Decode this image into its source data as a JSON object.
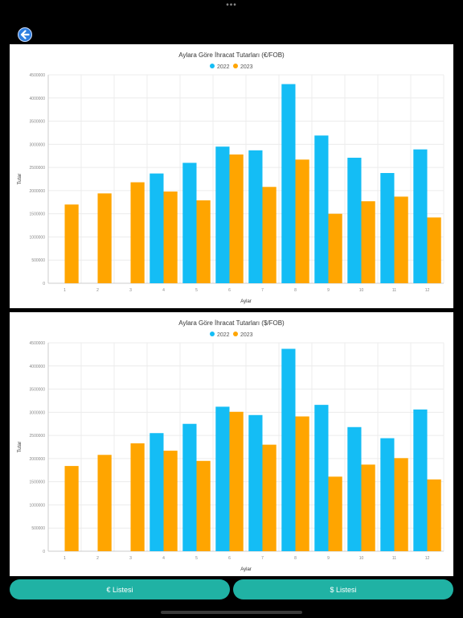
{
  "colors": {
    "series_2022": "#14bdf5",
    "series_2023": "#ffa500",
    "button": "#20b2a4",
    "back": "#2f7fe0"
  },
  "icons": {
    "back": "arrow-left-icon",
    "more": "more-dots-icon"
  },
  "top_dots": "•••",
  "buttons": {
    "eur_list": "€ Listesi",
    "usd_list": "$ Listesi"
  },
  "chart_data": [
    {
      "type": "bar",
      "title": "Aylara Göre İhracat Tutarları (€/FOB)",
      "xlabel": "Aylar",
      "ylabel": "Tutar",
      "categories": [
        "1",
        "2",
        "3",
        "4",
        "5",
        "6",
        "7",
        "8",
        "9",
        "10",
        "11",
        "12"
      ],
      "ylim": [
        0,
        4500000
      ],
      "yticks": [
        "0",
        "500000",
        "1000000",
        "1500000",
        "2000000",
        "2500000",
        "3000000",
        "3500000",
        "4000000",
        "4500000"
      ],
      "legend_position": "top",
      "grid": true,
      "series": [
        {
          "name": "2022",
          "values": [
            null,
            null,
            null,
            2370000,
            2600000,
            2950000,
            2870000,
            4300000,
            3190000,
            2710000,
            2380000,
            2890000
          ]
        },
        {
          "name": "2023",
          "values": [
            1700000,
            1940000,
            2180000,
            1980000,
            1790000,
            2780000,
            2080000,
            2670000,
            1500000,
            1770000,
            1870000,
            1420000
          ]
        }
      ]
    },
    {
      "type": "bar",
      "title": "Aylara Göre İhracat Tutarları ($/FOB)",
      "xlabel": "Aylar",
      "ylabel": "Tutar",
      "categories": [
        "1",
        "2",
        "3",
        "4",
        "5",
        "6",
        "7",
        "8",
        "9",
        "10",
        "11",
        "12"
      ],
      "ylim": [
        0,
        4500000
      ],
      "yticks": [
        "0",
        "500000",
        "1000000",
        "1500000",
        "2000000",
        "2500000",
        "3000000",
        "3500000",
        "4000000",
        "4500000"
      ],
      "legend_position": "top",
      "grid": true,
      "series": [
        {
          "name": "2022",
          "values": [
            null,
            null,
            null,
            2550000,
            2750000,
            3120000,
            2940000,
            4370000,
            3160000,
            2680000,
            2440000,
            3060000
          ]
        },
        {
          "name": "2023",
          "values": [
            1840000,
            2080000,
            2330000,
            2170000,
            1950000,
            3010000,
            2300000,
            2910000,
            1610000,
            1870000,
            2010000,
            1550000
          ]
        }
      ]
    }
  ]
}
